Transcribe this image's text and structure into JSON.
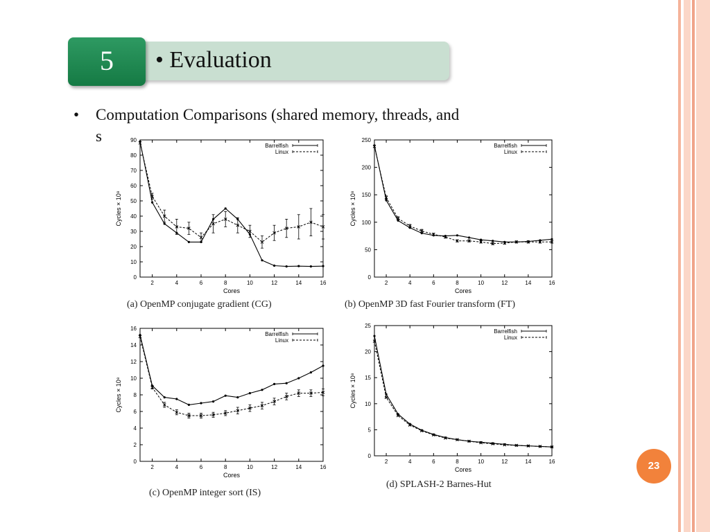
{
  "slide": {
    "section_number": "5",
    "title": "• Evaluation",
    "bullet_marker": "•",
    "bullet_text": "Computation Comparisons (shared memory, threads, and",
    "bullet_continuation": "s",
    "page_number": "23",
    "colors": {
      "section_box": "#1f8a50",
      "title_box": "#c9dfd1",
      "page_badge": "#f2823b",
      "stripe_dark": "#f0a48a",
      "stripe_light": "#fbd7c8"
    }
  },
  "chart_data": [
    {
      "type": "line",
      "caption": "(a) OpenMP conjugate gradient (CG)",
      "xlabel": "Cores",
      "ylabel": "Cycles × 10⁸",
      "xlim": [
        1,
        16
      ],
      "ylim": [
        0,
        90
      ],
      "xticks": [
        2,
        4,
        6,
        8,
        10,
        12,
        14,
        16
      ],
      "yticks": [
        0,
        10,
        20,
        30,
        40,
        50,
        60,
        70,
        80,
        90
      ],
      "legend_position": "top-right",
      "x": [
        1,
        2,
        3,
        4,
        5,
        6,
        7,
        8,
        9,
        10,
        11,
        12,
        13,
        14,
        15,
        16
      ],
      "series": [
        {
          "name": "Barrelfish",
          "style": "solid",
          "values": [
            89,
            49,
            35,
            29,
            23,
            23,
            38,
            45,
            38,
            28,
            11,
            7.5,
            7,
            7.2,
            7,
            7.2
          ]
        },
        {
          "name": "Linux",
          "style": "dashed",
          "values": [
            88,
            53,
            40,
            33,
            32,
            26,
            35,
            38,
            34,
            30,
            23,
            29,
            32,
            33,
            36,
            33
          ],
          "error": [
            0,
            2,
            4,
            5,
            4,
            3,
            6,
            5,
            5,
            4,
            4,
            5,
            6,
            8,
            9,
            8
          ]
        }
      ]
    },
    {
      "type": "line",
      "caption": "(b) OpenMP 3D fast Fourier transform (FT)",
      "xlabel": "Cores",
      "ylabel": "Cycles × 10⁸",
      "xlim": [
        1,
        16
      ],
      "ylim": [
        0,
        250
      ],
      "xticks": [
        2,
        4,
        6,
        8,
        10,
        12,
        14,
        16
      ],
      "yticks": [
        0,
        50,
        100,
        150,
        200,
        250
      ],
      "legend_position": "top-right",
      "x": [
        1,
        2,
        3,
        4,
        5,
        6,
        7,
        8,
        9,
        10,
        11,
        12,
        13,
        14,
        15,
        16
      ],
      "series": [
        {
          "name": "Barrelfish",
          "style": "solid",
          "values": [
            240,
            140,
            103,
            90,
            80,
            76,
            75,
            76,
            72,
            68,
            66,
            64,
            64,
            65,
            67,
            69
          ]
        },
        {
          "name": "Linux",
          "style": "dashed",
          "values": [
            238,
            145,
            107,
            93,
            84,
            78,
            73,
            66,
            66,
            64,
            61,
            62,
            64,
            64,
            64,
            64
          ],
          "error": [
            0,
            3,
            3,
            3,
            3,
            2,
            2,
            2,
            2,
            2,
            2,
            2,
            2,
            2,
            2,
            2
          ]
        }
      ]
    },
    {
      "type": "line",
      "caption": "(c) OpenMP integer sort (IS)",
      "xlabel": "Cores",
      "ylabel": "Cycles × 10⁸",
      "xlim": [
        1,
        16
      ],
      "ylim": [
        0,
        16
      ],
      "xticks": [
        2,
        4,
        6,
        8,
        10,
        12,
        14,
        16
      ],
      "yticks": [
        0,
        2,
        4,
        6,
        8,
        10,
        12,
        14,
        16
      ],
      "legend_position": "top-right",
      "x": [
        1,
        2,
        3,
        4,
        5,
        6,
        7,
        8,
        9,
        10,
        11,
        12,
        13,
        14,
        15,
        16
      ],
      "series": [
        {
          "name": "Barrelfish",
          "style": "solid",
          "values": [
            15.2,
            9.1,
            7.7,
            7.5,
            6.8,
            7.0,
            7.2,
            7.9,
            7.7,
            8.2,
            8.6,
            9.3,
            9.4,
            10.0,
            10.7,
            11.5
          ]
        },
        {
          "name": "Linux",
          "style": "dashed",
          "values": [
            15.0,
            8.9,
            6.8,
            5.9,
            5.5,
            5.5,
            5.6,
            5.8,
            6.1,
            6.4,
            6.7,
            7.2,
            7.8,
            8.2,
            8.2,
            8.3
          ],
          "error": [
            0,
            0.2,
            0.3,
            0.3,
            0.3,
            0.3,
            0.3,
            0.3,
            0.4,
            0.4,
            0.4,
            0.4,
            0.4,
            0.4,
            0.4,
            0.4
          ]
        }
      ]
    },
    {
      "type": "line",
      "caption": "(d) SPLASH-2 Barnes-Hut",
      "xlabel": "Cores",
      "ylabel": "Cycles × 10⁸",
      "xlim": [
        1,
        16
      ],
      "ylim": [
        0,
        25
      ],
      "xticks": [
        2,
        4,
        6,
        8,
        10,
        12,
        14,
        16
      ],
      "yticks": [
        0,
        5,
        10,
        15,
        20,
        25
      ],
      "legend_position": "top-right",
      "x": [
        1,
        2,
        3,
        4,
        5,
        6,
        7,
        8,
        9,
        10,
        11,
        12,
        13,
        14,
        15,
        16
      ],
      "series": [
        {
          "name": "Barrelfish",
          "style": "solid",
          "values": [
            23.0,
            11.8,
            8.0,
            6.1,
            4.9,
            4.1,
            3.5,
            3.1,
            2.8,
            2.6,
            2.4,
            2.2,
            2.0,
            1.9,
            1.8,
            1.7
          ]
        },
        {
          "name": "Linux",
          "style": "dashed",
          "values": [
            22.0,
            11.2,
            7.7,
            5.9,
            4.8,
            4.0,
            3.4,
            3.1,
            2.8,
            2.5,
            2.3,
            2.1,
            2.0,
            1.9,
            1.8,
            1.7
          ],
          "error": [
            0,
            0.1,
            0.1,
            0.1,
            0.1,
            0.1,
            0.1,
            0.1,
            0.1,
            0.1,
            0.1,
            0.1,
            0.1,
            0.1,
            0.1,
            0.1
          ]
        }
      ]
    }
  ]
}
